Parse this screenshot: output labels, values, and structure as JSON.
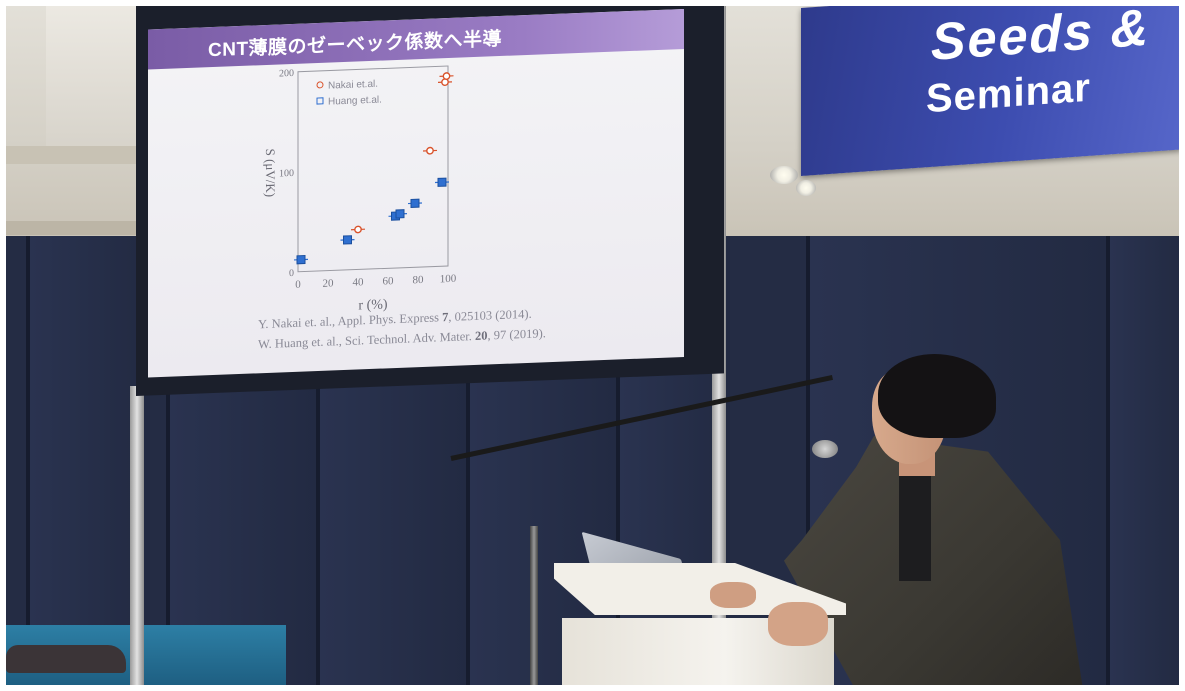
{
  "slide": {
    "title": "CNT薄膜のゼーベック係数へ半導",
    "plot": {
      "y_axis_label": "S (μV/K)",
      "x_axis_label": "r (%)",
      "y_ticks": [
        "0",
        "100",
        "200"
      ],
      "x_ticks": [
        "0",
        "20",
        "40",
        "60",
        "80",
        "100"
      ],
      "legend": [
        "Nakai et.al.",
        "Huang et.al."
      ]
    },
    "references": [
      {
        "text": "Y. Nakai et. al., Appl. Phys. Express ",
        "bold": "7",
        "tail": ", 025103 (2014)."
      },
      {
        "text": "W. Huang et. al., Sci. Technol. Adv. Mater. ",
        "bold": "20",
        "tail": ", 97 (2019)."
      }
    ]
  },
  "banner": {
    "line1": "Seeds &",
    "line2": "Seminar"
  },
  "chart_data": {
    "type": "scatter",
    "xlabel": "r (%)",
    "ylabel": "S (μV/K)",
    "xlim": [
      0,
      100
    ],
    "ylim": [
      0,
      200
    ],
    "series": [
      {
        "name": "Nakai et.al.",
        "color": "#d9532c",
        "marker": "circle",
        "x": [
          40,
          88,
          98,
          99
        ],
        "y": [
          40,
          116,
          184,
          190
        ]
      },
      {
        "name": "Huang et.al.",
        "color": "#2f6fd0",
        "marker": "square",
        "x": [
          2,
          33,
          65,
          68,
          78,
          96
        ],
        "y": [
          12,
          30,
          52,
          54,
          64,
          84
        ]
      }
    ]
  }
}
